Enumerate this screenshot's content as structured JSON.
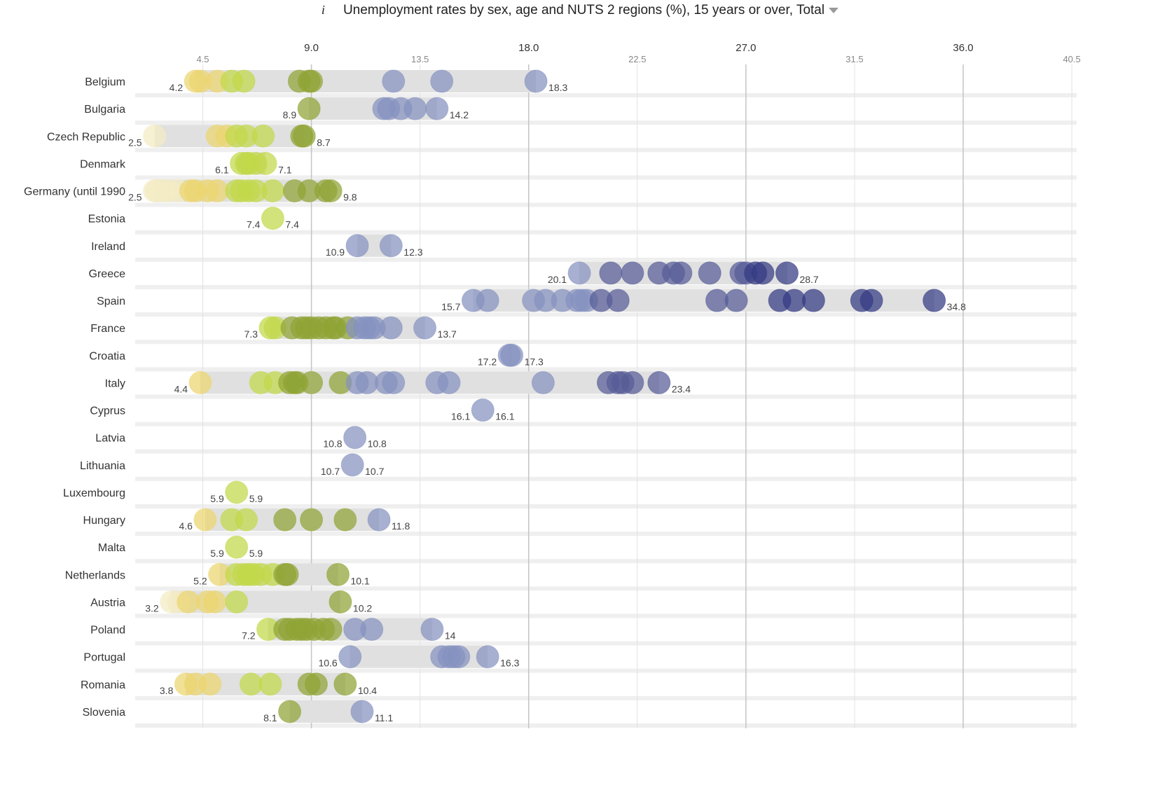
{
  "header": {
    "info_icon": "i",
    "title": "Unemployment rates by sex, age and NUTS 2 regions (%), 15 years or over, Total"
  },
  "chart_data": {
    "type": "dot-range",
    "title": "Unemployment rates by sex, age and NUTS 2 regions (%), 15 years or over, Total",
    "xlim": [
      1.7,
      40.7
    ],
    "major_ticks": [
      9.0,
      18.0,
      27.0,
      36.0
    ],
    "minor_ticks": [
      4.5,
      13.5,
      22.5,
      31.5,
      40.5
    ],
    "tick_labels": [
      "4.5",
      "9.0",
      "13.5",
      "18.0",
      "22.5",
      "27.0",
      "31.5",
      "36.0",
      "40.5"
    ],
    "grid": true,
    "color_scale": [
      {
        "max": 3.5,
        "color": "#f4ecc4"
      },
      {
        "max": 5.5,
        "color": "#ebd66f"
      },
      {
        "max": 7.7,
        "color": "#c2d84a"
      },
      {
        "max": 10.5,
        "color": "#8fa434"
      },
      {
        "max": 20.5,
        "color": "#8592bf"
      },
      {
        "max": 27.0,
        "color": "#565b97"
      },
      {
        "max": 99,
        "color": "#333a82"
      }
    ],
    "rows": [
      {
        "country": "Belgium",
        "min_label": "4.2",
        "max_label": "18.3",
        "values": [
          4.2,
          4.4,
          5.1,
          5.7,
          6.2,
          8.5,
          8.9,
          9.0,
          12.4,
          14.4,
          18.3
        ]
      },
      {
        "country": "Bulgaria",
        "min_label": "8.9",
        "max_label": "14.2",
        "values": [
          8.9,
          12.0,
          12.2,
          12.7,
          13.3,
          14.2
        ]
      },
      {
        "country": "Czech Republic",
        "min_label": "2.5",
        "max_label": "8.7",
        "values": [
          2.5,
          5.1,
          5.5,
          5.9,
          6.3,
          7.0,
          8.6,
          8.7
        ]
      },
      {
        "country": "Denmark",
        "min_label": "6.1",
        "max_label": "7.1",
        "values": [
          6.1,
          6.3,
          6.4,
          6.7,
          7.1
        ]
      },
      {
        "country": "Germany (until 1990",
        "min_label": "2.5",
        "max_label": "9.8",
        "values": [
          2.5,
          2.6,
          2.9,
          3.1,
          3.5,
          4.0,
          4.2,
          4.7,
          5.1,
          5.9,
          6.1,
          6.4,
          6.7,
          7.4,
          8.3,
          8.9,
          9.6,
          9.8
        ]
      },
      {
        "country": "Estonia",
        "min_label": "7.4",
        "max_label": "7.4",
        "values": [
          7.4
        ]
      },
      {
        "country": "Ireland",
        "min_label": "10.9",
        "max_label": "12.3",
        "values": [
          10.9,
          12.3
        ]
      },
      {
        "country": "Greece",
        "min_label": "20.1",
        "max_label": "28.7",
        "values": [
          20.1,
          21.4,
          22.3,
          23.4,
          24.0,
          24.3,
          25.5,
          26.8,
          27.0,
          27.4,
          27.7,
          28.7
        ]
      },
      {
        "country": "Spain",
        "min_label": "15.7",
        "max_label": "34.8",
        "values": [
          15.7,
          16.3,
          18.2,
          18.7,
          19.4,
          20.0,
          20.2,
          20.4,
          21.0,
          21.7,
          25.8,
          26.6,
          28.4,
          29.0,
          29.8,
          31.8,
          32.2,
          34.8
        ]
      },
      {
        "country": "France",
        "min_label": "7.3",
        "max_label": "13.7",
        "values": [
          7.3,
          7.5,
          8.2,
          8.6,
          8.8,
          9.0,
          9.3,
          9.6,
          9.9,
          10.0,
          10.5,
          10.9,
          11.2,
          11.4,
          11.6,
          12.3,
          13.7
        ]
      },
      {
        "country": "Croatia",
        "min_label": "17.2",
        "max_label": "17.3",
        "values": [
          17.2,
          17.3
        ]
      },
      {
        "country": "Italy",
        "min_label": "4.4",
        "max_label": "23.4",
        "values": [
          4.4,
          6.9,
          7.5,
          8.1,
          8.3,
          8.4,
          9.0,
          10.2,
          10.9,
          11.3,
          12.1,
          12.4,
          14.2,
          14.7,
          18.6,
          21.3,
          21.7,
          21.9,
          22.3,
          23.4
        ]
      },
      {
        "country": "Cyprus",
        "min_label": "16.1",
        "max_label": "16.1",
        "values": [
          16.1
        ]
      },
      {
        "country": "Latvia",
        "min_label": "10.8",
        "max_label": "10.8",
        "values": [
          10.8
        ]
      },
      {
        "country": "Lithuania",
        "min_label": "10.7",
        "max_label": "10.7",
        "values": [
          10.7
        ]
      },
      {
        "country": "Luxembourg",
        "min_label": "5.9",
        "max_label": "5.9",
        "values": [
          5.9
        ]
      },
      {
        "country": "Hungary",
        "min_label": "4.6",
        "max_label": "11.8",
        "values": [
          4.6,
          5.7,
          6.3,
          7.9,
          9.0,
          10.4,
          11.8
        ]
      },
      {
        "country": "Malta",
        "min_label": "5.9",
        "max_label": "5.9",
        "values": [
          5.9
        ]
      },
      {
        "country": "Netherlands",
        "min_label": "5.2",
        "max_label": "10.1",
        "values": [
          5.2,
          5.9,
          6.2,
          6.4,
          6.6,
          6.9,
          7.4,
          7.9,
          8.0,
          10.1
        ]
      },
      {
        "country": "Austria",
        "min_label": "3.2",
        "max_label": "10.2",
        "values": [
          3.2,
          3.5,
          3.9,
          4.7,
          5.0,
          5.9,
          10.2
        ]
      },
      {
        "country": "Poland",
        "min_label": "7.2",
        "max_label": "14",
        "values": [
          7.2,
          7.9,
          8.1,
          8.4,
          8.6,
          8.8,
          9.1,
          9.5,
          9.8,
          10.8,
          11.5,
          14.0
        ]
      },
      {
        "country": "Portugal",
        "min_label": "10.6",
        "max_label": "16.3",
        "values": [
          10.6,
          14.4,
          14.7,
          14.9,
          15.1,
          16.3
        ]
      },
      {
        "country": "Romania",
        "min_label": "3.8",
        "max_label": "10.4",
        "values": [
          3.8,
          4.2,
          4.8,
          6.5,
          7.3,
          8.9,
          9.2,
          10.4
        ]
      },
      {
        "country": "Slovenia",
        "min_label": "8.1",
        "max_label": "11.1",
        "values": [
          8.1,
          11.1
        ]
      }
    ]
  }
}
